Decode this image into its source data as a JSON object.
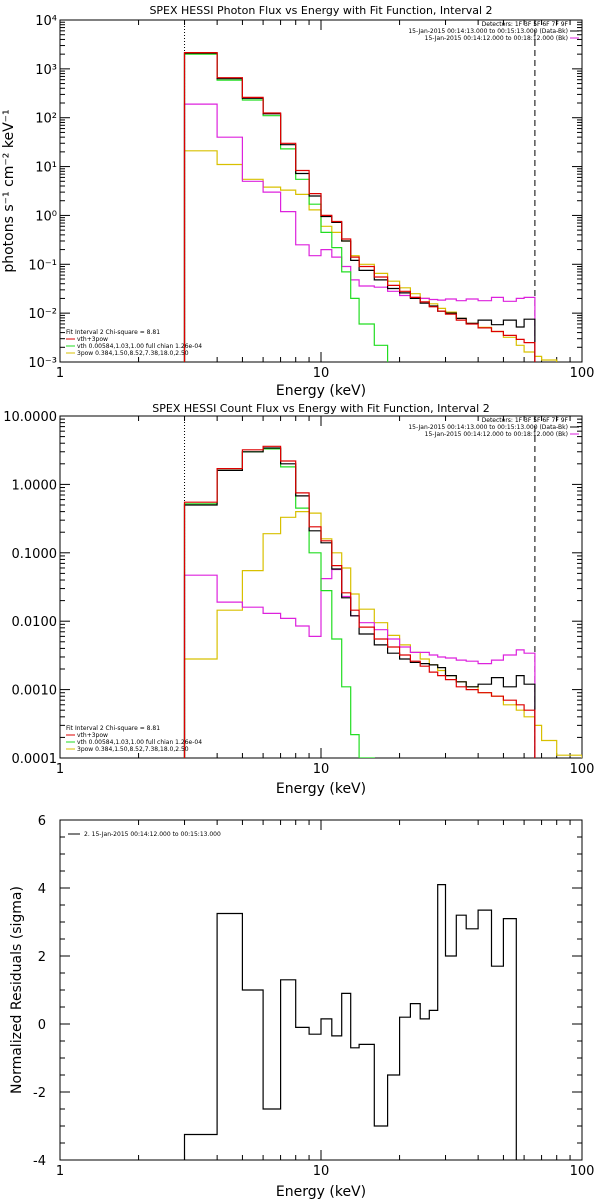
{
  "colors": {
    "black": "#000000",
    "red": "#dd0000",
    "green": "#22dd22",
    "yellow": "#d8c000",
    "magenta": "#dd22dd"
  },
  "chart_data": [
    {
      "type": "line",
      "title": "SPEX HESSI Photon Flux vs Energy with Fit Function, Interval 2",
      "xlabel": "Energy (keV)",
      "ylabel": "photons s⁻¹ cm⁻² keV⁻¹",
      "xscale": "log",
      "yscale": "log",
      "xlim": [
        1,
        100
      ],
      "ylim": [
        0.001,
        10000
      ],
      "x_ticks": [
        "1",
        "10",
        "100"
      ],
      "y_ticks": [
        "10⁻³",
        "10⁻²",
        "10⁻¹",
        "10⁰",
        "10¹",
        "10²",
        "10³",
        "10⁴"
      ],
      "fit_range": [
        3,
        66
      ],
      "legend_right": [
        "Detectors: 1F 3F 5F 6F 7F 9F",
        "15-Jan-2015 00:14:13.000 to 00:15:13.000 (Data-Bk)",
        "15-Jan-2015 00:14:12.000 to 00:18:12.000 (Bk)"
      ],
      "legend_left": [
        "Fit Interval 2   Chi-square = 8.81",
        "vth+3pow",
        "vth 0.00584,1.03,1.00  full chian 1.26e-04",
        "3pow 0.384,1.50,8.52,7.38,18.0,2.50"
      ],
      "bin_edges": [
        3,
        4,
        5,
        6,
        7,
        8,
        9,
        10,
        11,
        12,
        13,
        14,
        16,
        18,
        20,
        22,
        24,
        26,
        28,
        30,
        33,
        36,
        40,
        45,
        50,
        56,
        60,
        66,
        70,
        80
      ],
      "series": [
        {
          "name": "Data-Bk",
          "values": [
            2100,
            630,
            250,
            120,
            28,
            7.2,
            2.5,
            0.95,
            0.72,
            0.3,
            0.12,
            0.075,
            0.048,
            0.032,
            0.026,
            0.02,
            0.016,
            0.014,
            0.011,
            0.01,
            0.0078,
            0.0062,
            0.0072,
            0.0058,
            0.0072,
            0.0052,
            0.0075
          ]
        },
        {
          "name": "vth+3pow",
          "values": [
            2150,
            660,
            260,
            125,
            30,
            8.3,
            2.8,
            1.0,
            0.75,
            0.33,
            0.14,
            0.09,
            0.055,
            0.037,
            0.028,
            0.021,
            0.017,
            0.0135,
            0.011,
            0.0095,
            0.0072,
            0.006,
            0.005,
            0.0042,
            0.0035,
            0.0029,
            0.0025
          ]
        },
        {
          "name": "vth",
          "values": [
            2000,
            590,
            230,
            110,
            23,
            5.5,
            1.7,
            0.45,
            0.22,
            0.07,
            0.02,
            0.006,
            0.0022,
            0.0008
          ]
        },
        {
          "name": "3pow",
          "values": [
            21,
            11,
            5.5,
            3.8,
            3.3,
            2.7,
            1.3,
            0.6,
            0.45,
            0.3,
            0.15,
            0.1,
            0.065,
            0.045,
            0.033,
            0.025,
            0.02,
            0.0155,
            0.0125,
            0.0105,
            0.0078,
            0.0062,
            0.0051,
            0.0042,
            0.0032,
            0.0022,
            0.0016,
            0.0013,
            0.0011
          ]
        },
        {
          "name": "Bk",
          "values": [
            190,
            40,
            5,
            3,
            1.2,
            0.25,
            0.15,
            0.2,
            0.14,
            0.09,
            0.048,
            0.036,
            0.034,
            0.028,
            0.023,
            0.021,
            0.02,
            0.019,
            0.0185,
            0.0195,
            0.018,
            0.0195,
            0.018,
            0.021,
            0.0175,
            0.02,
            0.021
          ]
        }
      ]
    },
    {
      "type": "line",
      "title": "SPEX HESSI Count Flux vs Energy with Fit Function, Interval 2",
      "xlabel": "Energy (keV)",
      "ylabel": "",
      "xscale": "log",
      "yscale": "log",
      "xlim": [
        1,
        100
      ],
      "ylim": [
        0.0001,
        10
      ],
      "x_ticks": [
        "1",
        "10",
        "100"
      ],
      "y_ticks": [
        "0.0001",
        "0.0010",
        "0.0100",
        "0.1000",
        "1.0000",
        "10.0000"
      ],
      "fit_range": [
        3,
        66
      ],
      "legend_right": [
        "Detectors: 1F 3F 5F 6F 7F 9F",
        "15-Jan-2015 00:14:13.000 to 00:15:13.000 (Data-Bk)",
        "15-Jan-2015 00:14:12.000 to 00:18:12.000 (Bk)"
      ],
      "legend_left": [
        "Fit Interval 2   Chi-square = 8.81",
        "vth+3pow",
        "vth 0.00584,1.03,1.00  full chian 1.26e-04",
        "3pow 0.384,1.50,8.52,7.38,18.0,2.50"
      ],
      "bin_edges": [
        3,
        4,
        5,
        6,
        7,
        8,
        9,
        10,
        11,
        12,
        13,
        14,
        16,
        18,
        20,
        22,
        24,
        26,
        28,
        30,
        33,
        36,
        40,
        45,
        50,
        56,
        60,
        66,
        70,
        80,
        100
      ],
      "series": [
        {
          "name": "Data-Bk",
          "values": [
            0.5,
            1.6,
            3.0,
            3.4,
            2.0,
            0.68,
            0.21,
            0.14,
            0.058,
            0.022,
            0.012,
            0.0065,
            0.0045,
            0.0034,
            0.0028,
            0.0025,
            0.0024,
            0.0023,
            0.0021,
            0.0016,
            0.0013,
            0.0011,
            0.0012,
            0.0015,
            0.0011,
            0.0016,
            0.0012
          ]
        },
        {
          "name": "vth+3pow",
          "values": [
            0.55,
            1.7,
            3.2,
            3.6,
            2.2,
            0.75,
            0.24,
            0.15,
            0.065,
            0.026,
            0.0145,
            0.0082,
            0.0055,
            0.0042,
            0.0032,
            0.0026,
            0.0022,
            0.0018,
            0.0016,
            0.0014,
            0.0011,
            0.001,
            0.0009,
            0.0008,
            0.0007,
            0.0006,
            0.0005
          ]
        },
        {
          "name": "vth",
          "values": [
            0.52,
            1.6,
            3.0,
            3.3,
            1.8,
            0.45,
            0.1,
            0.028,
            0.0055,
            0.0011,
            0.00022,
            0.0001
          ]
        },
        {
          "name": "3pow",
          "values": [
            0.0028,
            0.0145,
            0.055,
            0.19,
            0.33,
            0.4,
            0.38,
            0.16,
            0.1,
            0.06,
            0.025,
            0.015,
            0.0095,
            0.0062,
            0.0045,
            0.0035,
            0.0028,
            0.0023,
            0.0019,
            0.0016,
            0.0013,
            0.0011,
            0.0009,
            0.0008,
            0.0006,
            0.0005,
            0.0004,
            0.0003,
            0.00018,
            0.00011
          ]
        },
        {
          "name": "Bk",
          "values": [
            0.047,
            0.019,
            0.016,
            0.013,
            0.011,
            0.0085,
            0.006,
            0.042,
            0.057,
            0.023,
            0.012,
            0.0095,
            0.0075,
            0.0055,
            0.0042,
            0.0035,
            0.0035,
            0.0032,
            0.003,
            0.0029,
            0.0027,
            0.0026,
            0.0024,
            0.0027,
            0.0032,
            0.0038,
            0.0034
          ]
        }
      ]
    },
    {
      "type": "line",
      "title": "",
      "xlabel": "Energy (keV)",
      "ylabel": "Normalized Residuals (sigma)",
      "xscale": "log",
      "yscale": "linear",
      "xlim": [
        1,
        100
      ],
      "ylim": [
        -4,
        6
      ],
      "x_ticks": [
        "1",
        "10",
        "100"
      ],
      "y_ticks": [
        "-4",
        "-2",
        "0",
        "2",
        "4",
        "6"
      ],
      "legend": "2. 15-Jan-2015 00:14:12.000 to 00:15:13.000",
      "bin_edges": [
        3,
        4,
        5,
        6,
        7,
        8,
        9,
        10,
        11,
        12,
        13,
        14,
        16,
        18,
        20,
        22,
        24,
        26,
        28,
        30,
        33,
        36,
        40,
        45,
        50,
        56,
        60,
        66
      ],
      "series": [
        {
          "name": "residuals",
          "values": [
            -3.25,
            3.25,
            1.0,
            -2.5,
            1.3,
            -0.1,
            -0.3,
            0.15,
            -0.35,
            0.9,
            -0.7,
            -0.6,
            -3.0,
            -1.5,
            0.2,
            0.6,
            0.15,
            0.4,
            4.1,
            2.0,
            3.2,
            2.8,
            3.35,
            1.7,
            3.1
          ]
        }
      ]
    }
  ]
}
